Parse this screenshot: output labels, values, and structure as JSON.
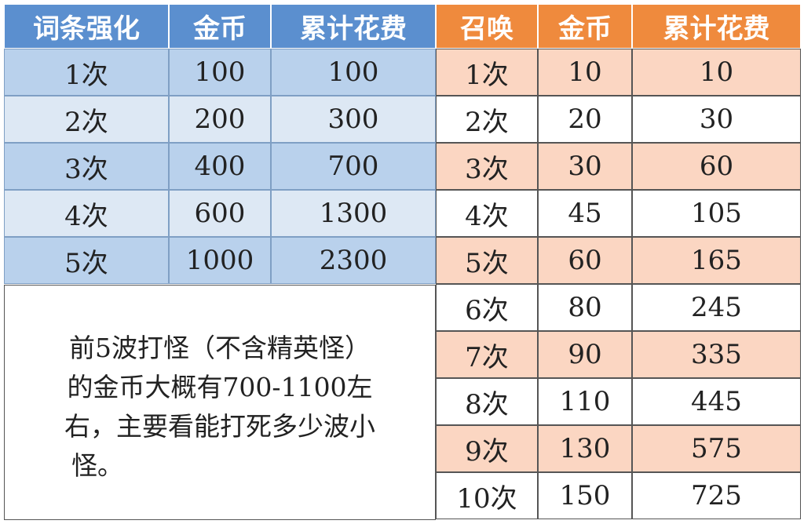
{
  "left_table": {
    "headers": [
      "词条强化",
      "金币",
      "累计花费"
    ],
    "rows": [
      [
        "1次",
        100,
        100
      ],
      [
        "2次",
        200,
        300
      ],
      [
        "3次",
        400,
        700
      ],
      [
        "4次",
        600,
        1300
      ],
      [
        "5次",
        1000,
        2300
      ]
    ]
  },
  "note": {
    "lines": [
      "前5波打怪（不含精英怪）",
      "的金币大概有700-1100左",
      "右，主要看能打死多少波小",
      "怪。"
    ]
  },
  "right_table": {
    "headers": [
      "召唤",
      "金币",
      "累计花费"
    ],
    "rows": [
      [
        "1次",
        10,
        10
      ],
      [
        "2次",
        20,
        30
      ],
      [
        "3次",
        30,
        60
      ],
      [
        "4次",
        45,
        105
      ],
      [
        "5次",
        60,
        165
      ],
      [
        "6次",
        80,
        245
      ],
      [
        "7次",
        90,
        335
      ],
      [
        "8次",
        110,
        445
      ],
      [
        "9次",
        130,
        575
      ],
      [
        "10次",
        150,
        725
      ]
    ]
  }
}
